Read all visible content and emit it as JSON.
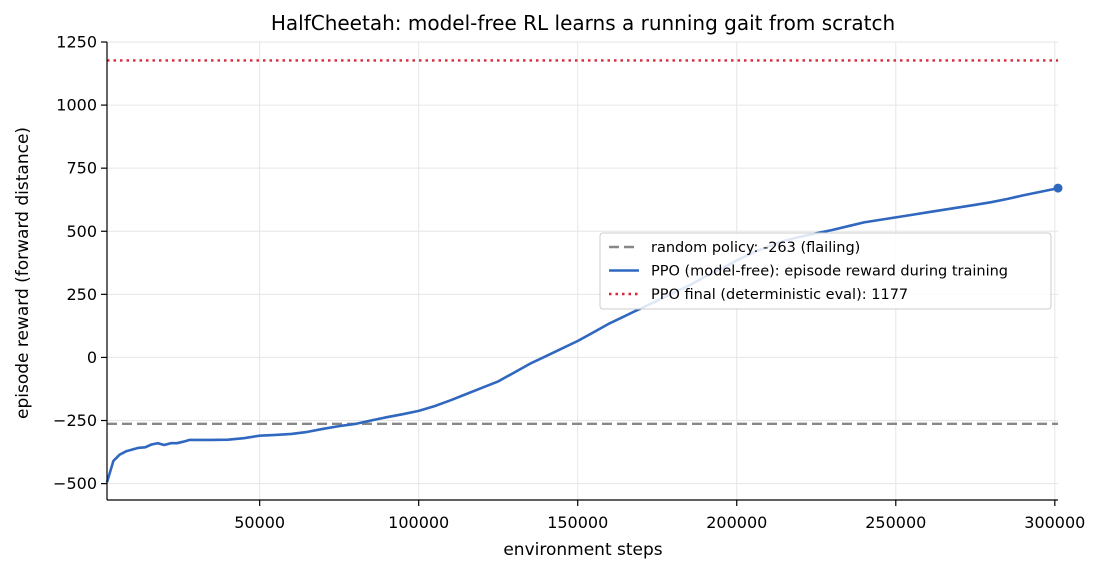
{
  "chart_data": {
    "type": "line",
    "title": "HalfCheetah: model-free RL learns a running gait from scratch",
    "xlabel": "environment steps",
    "ylabel": "episode reward (forward distance)",
    "xlim": [
      2000,
      301000
    ],
    "ylim": [
      -565,
      1250
    ],
    "x_ticks": [
      50000,
      100000,
      150000,
      200000,
      250000,
      300000
    ],
    "y_ticks": [
      -500,
      -250,
      0,
      250,
      500,
      750,
      1000,
      1250
    ],
    "grid": true,
    "legend_position": "center-right",
    "series": [
      {
        "name": "PPO (model-free): episode reward during training",
        "color": "#3068c0",
        "style": "solid",
        "x": [
          2000,
          4000,
          6000,
          8000,
          10000,
          12000,
          14000,
          16000,
          18000,
          20000,
          22000,
          24000,
          26000,
          28000,
          30000,
          35000,
          40000,
          45000,
          50000,
          55000,
          60000,
          65000,
          70000,
          75000,
          80000,
          85000,
          90000,
          95000,
          100000,
          105000,
          110000,
          115000,
          120000,
          125000,
          130000,
          135000,
          140000,
          145000,
          150000,
          155000,
          160000,
          165000,
          170000,
          175000,
          180000,
          185000,
          190000,
          195000,
          200000,
          205000,
          210000,
          215000,
          220000,
          225000,
          230000,
          235000,
          240000,
          245000,
          250000,
          255000,
          260000,
          265000,
          270000,
          275000,
          280000,
          285000,
          290000,
          295000,
          300000,
          301000
        ],
        "y": [
          -495,
          -410,
          -385,
          -372,
          -365,
          -358,
          -356,
          -345,
          -340,
          -347,
          -340,
          -340,
          -334,
          -327,
          -327,
          -327,
          -326,
          -320,
          -310,
          -307,
          -303,
          -295,
          -283,
          -272,
          -264,
          -250,
          -237,
          -225,
          -212,
          -193,
          -170,
          -145,
          -120,
          -95,
          -60,
          -25,
          5,
          35,
          65,
          100,
          135,
          165,
          195,
          225,
          255,
          285,
          320,
          350,
          385,
          415,
          440,
          462,
          478,
          492,
          505,
          520,
          535,
          545,
          555,
          565,
          575,
          585,
          595,
          605,
          615,
          628,
          642,
          655,
          668,
          671
        ]
      }
    ],
    "reference_lines": [
      {
        "name": "random policy: -263 (flailing)",
        "value": -263,
        "color": "#888888",
        "style": "dashed"
      },
      {
        "name": "PPO final (deterministic eval): 1177",
        "value": 1177,
        "color": "#d62738",
        "style": "dotted"
      }
    ],
    "legend": [
      {
        "label": "random policy: -263 (flailing)",
        "color": "#888888",
        "style": "dashed"
      },
      {
        "label": "PPO (model-free): episode reward during training",
        "color": "#3068c0",
        "style": "solid"
      },
      {
        "label": "PPO final (deterministic eval): 1177",
        "color": "#d62738",
        "style": "dotted"
      }
    ]
  }
}
